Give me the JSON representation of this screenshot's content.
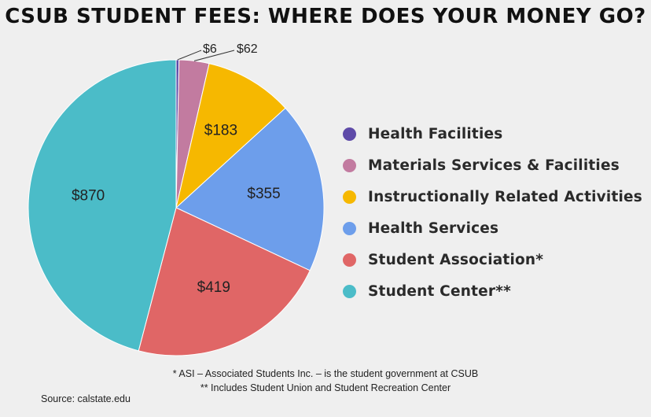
{
  "title": "CSUB STUDENT FEES: WHERE DOES YOUR MONEY GO?",
  "footnotes": [
    "* ASI – Associated Students Inc. – is the student government at CSUB",
    "** Includes Student Union and Student Recreation Center"
  ],
  "source": "Source: calstate.edu",
  "chart_data": {
    "type": "pie",
    "title": "CSUB STUDENT FEES: WHERE DOES YOUR MONEY GO?",
    "legend_position": "right",
    "slices": [
      {
        "name": "Health Facilities",
        "value": 6,
        "label": "$6",
        "color": "#5e4aa8"
      },
      {
        "name": "Materials Services & Facilities",
        "value": 62,
        "label": "$62",
        "color": "#c27ba0"
      },
      {
        "name": "Instructionally Related Activities",
        "value": 183,
        "label": "$183",
        "color": "#f6b800"
      },
      {
        "name": "Health Services",
        "value": 355,
        "label": "$355",
        "color": "#6d9eeb"
      },
      {
        "name": "Student Association*",
        "value": 419,
        "label": "$419",
        "color": "#e06666"
      },
      {
        "name": "Student Center**",
        "value": 870,
        "label": "$870",
        "color": "#4bbcc8"
      }
    ]
  }
}
